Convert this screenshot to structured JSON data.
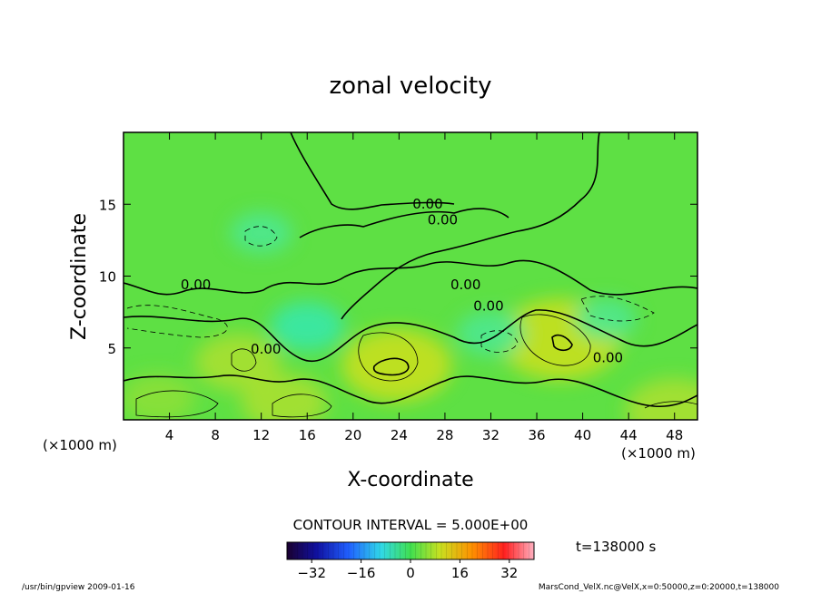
{
  "chart_data": {
    "type": "heatmap",
    "title": "zonal velocity",
    "xlabel": "X-coordinate",
    "ylabel": "Z-coordinate",
    "x_unit": "(×1000 m)",
    "y_unit": "(×1000 m)",
    "xlim": [
      0,
      50
    ],
    "ylim": [
      0,
      20
    ],
    "x_ticks": [
      4,
      8,
      12,
      16,
      20,
      24,
      28,
      32,
      36,
      40,
      44,
      48
    ],
    "y_ticks": [
      5,
      10,
      15
    ],
    "contour_interval_text": "CONTOUR INTERVAL = 5.000E+00",
    "time_text": "t=138000 s",
    "colorbar": {
      "range": [
        -40,
        40
      ],
      "ticks": [
        -32,
        -16,
        0,
        16,
        32
      ]
    },
    "contour_labels": [
      {
        "x": 26.5,
        "z": 14.7,
        "text": "0.00"
      },
      {
        "x": 27.8,
        "z": 13.6,
        "text": "0.00"
      },
      {
        "x": 6.3,
        "z": 9.1,
        "text": "0.00"
      },
      {
        "x": 29.8,
        "z": 9.1,
        "text": "0.00"
      },
      {
        "x": 31.8,
        "z": 7.6,
        "text": "0.00"
      },
      {
        "x": 12.4,
        "z": 4.6,
        "text": "0.00"
      },
      {
        "x": 42.2,
        "z": 4.0,
        "text": "0.00"
      }
    ],
    "features": [
      {
        "x": 23.8,
        "z": 3.8,
        "value": 12,
        "sign": "positive"
      },
      {
        "x": 38.0,
        "z": 5.6,
        "value": 14,
        "sign": "positive"
      },
      {
        "x": 10.0,
        "z": 4.0,
        "value": 8,
        "sign": "positive"
      },
      {
        "x": 14.0,
        "z": 1.2,
        "value": 8,
        "sign": "positive"
      },
      {
        "x": 3.0,
        "z": 1.5,
        "value": 6,
        "sign": "positive"
      },
      {
        "x": 48.0,
        "z": 0.6,
        "value": 10,
        "sign": "positive"
      },
      {
        "x": 16.0,
        "z": 6.5,
        "value": -6,
        "sign": "negative"
      },
      {
        "x": 32.0,
        "z": 6.0,
        "value": -5,
        "sign": "negative"
      },
      {
        "x": 12.0,
        "z": 13.0,
        "value": -4,
        "sign": "negative"
      },
      {
        "x": 42.0,
        "z": 7.0,
        "value": -4,
        "sign": "negative"
      }
    ]
  },
  "footer": {
    "left": "/usr/bin/gpview   2009-01-16",
    "right": "MarsCond_VelX.nc@VelX,x=0:50000,z=0:20000,t=138000"
  }
}
